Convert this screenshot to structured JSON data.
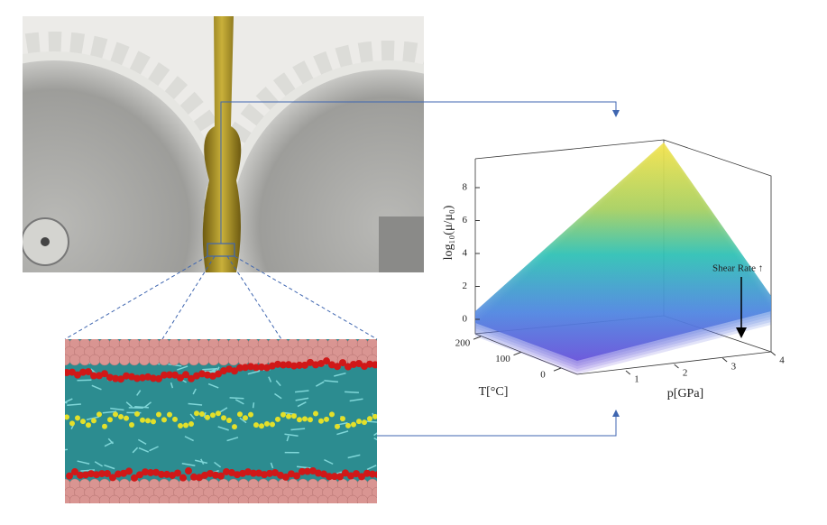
{
  "plot": {
    "z_label": "log₁₀(μ/μ₀)",
    "x_label": "p[GPa]",
    "y_label": "T[°C]",
    "annotation": "Shear Rate ↑",
    "z_ticks": [
      0,
      2,
      4,
      6,
      8
    ],
    "p_ticks": [
      1,
      2,
      3,
      4
    ],
    "t_ticks": [
      200,
      100,
      0
    ]
  }
}
